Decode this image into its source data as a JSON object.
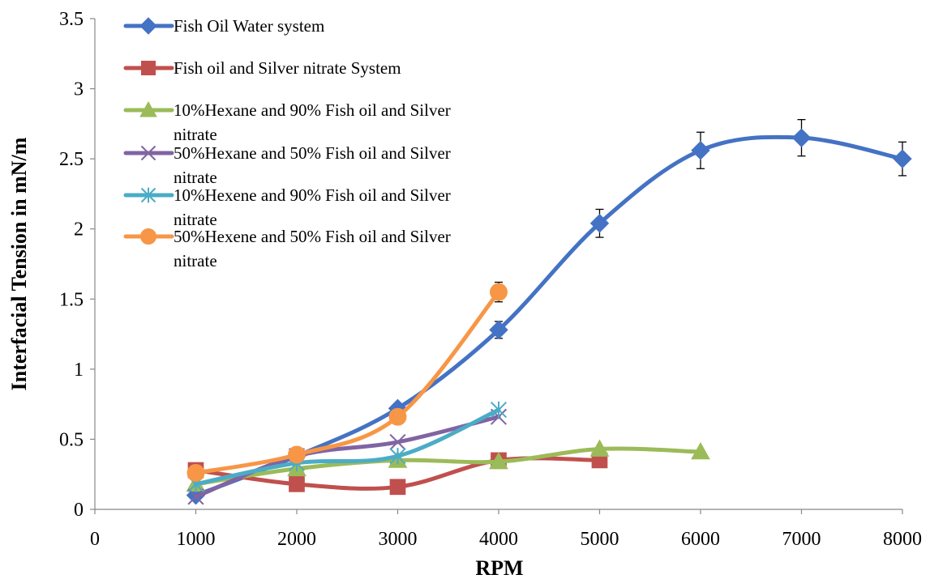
{
  "chart_data": {
    "type": "line",
    "title": "",
    "xlabel": "RPM",
    "ylabel": "Interfacial Tension in mN/m",
    "xlim": [
      0,
      8000
    ],
    "ylim": [
      0,
      3.5
    ],
    "x_ticks": [
      "0",
      "1000",
      "2000",
      "3000",
      "4000",
      "5000",
      "6000",
      "7000",
      "8000"
    ],
    "y_ticks": [
      "0",
      "0.5",
      "1",
      "1.5",
      "2",
      "2.5",
      "3",
      "3.5"
    ],
    "grid": false,
    "legend_position": "top-left",
    "series": [
      {
        "name": "Fish Oil Water system",
        "color": "#4472C4",
        "marker": "diamond",
        "x": [
          1000,
          2000,
          3000,
          4000,
          5000,
          6000,
          7000,
          8000
        ],
        "y": [
          0.1,
          0.38,
          0.72,
          1.28,
          2.04,
          2.56,
          2.65,
          2.5
        ],
        "error": [
          0,
          0,
          0,
          0.06,
          0.1,
          0.13,
          0.13,
          0.12
        ]
      },
      {
        "name": "Fish oil and Silver nitrate System",
        "color": "#C0504D",
        "marker": "square",
        "x": [
          1000,
          2000,
          3000,
          4000,
          5000
        ],
        "y": [
          0.28,
          0.18,
          0.16,
          0.35,
          0.35
        ]
      },
      {
        "name": "10%Hexane and 90% Fish oil and Silver nitrate",
        "color": "#9BBB59",
        "marker": "triangle",
        "x": [
          1000,
          2000,
          3000,
          4000,
          5000,
          6000
        ],
        "y": [
          0.18,
          0.29,
          0.35,
          0.34,
          0.43,
          0.41
        ]
      },
      {
        "name": "50%Hexane and 50% Fish oil and Silver nitrate",
        "color": "#8064A2",
        "marker": "x",
        "x": [
          1000,
          2000,
          3000,
          4000
        ],
        "y": [
          0.09,
          0.38,
          0.48,
          0.66
        ]
      },
      {
        "name": "10%Hexene and 90% Fish oil and Silver nitrate",
        "color": "#4BACC6",
        "marker": "star",
        "x": [
          1000,
          2000,
          3000,
          4000
        ],
        "y": [
          0.18,
          0.33,
          0.38,
          0.71
        ]
      },
      {
        "name": "50%Hexene and 50% Fish oil and Silver nitrate",
        "color": "#F79646",
        "marker": "circle",
        "x": [
          1000,
          2000,
          3000,
          4000
        ],
        "y": [
          0.26,
          0.39,
          0.66,
          1.55
        ],
        "error": [
          0,
          0,
          0,
          0.07
        ]
      }
    ],
    "legend_lines": [
      [
        "Fish Oil Water system"
      ],
      [
        "Fish oil and Silver nitrate System"
      ],
      [
        "10%Hexane and 90% Fish oil and Silver",
        "nitrate"
      ],
      [
        "50%Hexane and 50% Fish oil and Silver",
        "nitrate"
      ],
      [
        "10%Hexene and 90% Fish oil and Silver",
        "nitrate"
      ],
      [
        "50%Hexene and 50% Fish oil and Silver",
        "nitrate"
      ]
    ]
  }
}
